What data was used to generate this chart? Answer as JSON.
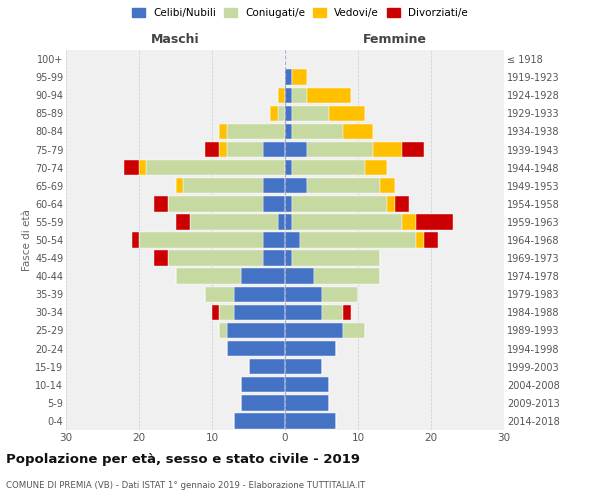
{
  "age_groups": [
    "0-4",
    "5-9",
    "10-14",
    "15-19",
    "20-24",
    "25-29",
    "30-34",
    "35-39",
    "40-44",
    "45-49",
    "50-54",
    "55-59",
    "60-64",
    "65-69",
    "70-74",
    "75-79",
    "80-84",
    "85-89",
    "90-94",
    "95-99",
    "100+"
  ],
  "birth_years": [
    "2014-2018",
    "2009-2013",
    "2004-2008",
    "1999-2003",
    "1994-1998",
    "1989-1993",
    "1984-1988",
    "1979-1983",
    "1974-1978",
    "1969-1973",
    "1964-1968",
    "1959-1963",
    "1954-1958",
    "1949-1953",
    "1944-1948",
    "1939-1943",
    "1934-1938",
    "1929-1933",
    "1924-1928",
    "1919-1923",
    "≤ 1918"
  ],
  "male": {
    "celibi": [
      7,
      6,
      6,
      5,
      8,
      8,
      7,
      7,
      6,
      3,
      3,
      1,
      3,
      3,
      0,
      3,
      0,
      0,
      0,
      0,
      0
    ],
    "coniugati": [
      0,
      0,
      0,
      0,
      0,
      1,
      2,
      4,
      9,
      13,
      17,
      12,
      13,
      11,
      19,
      5,
      8,
      1,
      0,
      0,
      0
    ],
    "vedovi": [
      0,
      0,
      0,
      0,
      0,
      0,
      0,
      0,
      0,
      0,
      0,
      0,
      0,
      1,
      1,
      1,
      1,
      1,
      1,
      0,
      0
    ],
    "divorziati": [
      0,
      0,
      0,
      0,
      0,
      0,
      1,
      0,
      0,
      2,
      1,
      2,
      2,
      0,
      2,
      2,
      0,
      0,
      0,
      0,
      0
    ]
  },
  "female": {
    "nubili": [
      7,
      6,
      6,
      5,
      7,
      8,
      5,
      5,
      4,
      1,
      2,
      1,
      1,
      3,
      1,
      3,
      1,
      1,
      1,
      1,
      0
    ],
    "coniugate": [
      0,
      0,
      0,
      0,
      0,
      3,
      3,
      5,
      9,
      12,
      16,
      15,
      13,
      10,
      10,
      9,
      7,
      5,
      2,
      0,
      0
    ],
    "vedove": [
      0,
      0,
      0,
      0,
      0,
      0,
      0,
      0,
      0,
      0,
      1,
      2,
      1,
      2,
      3,
      4,
      4,
      5,
      6,
      2,
      0
    ],
    "divorziate": [
      0,
      0,
      0,
      0,
      0,
      0,
      1,
      0,
      0,
      0,
      2,
      5,
      2,
      0,
      0,
      3,
      0,
      0,
      0,
      0,
      0
    ]
  },
  "colors": {
    "celibi": "#4472c4",
    "coniugati": "#c5d9a0",
    "vedovi": "#ffc000",
    "divorziati": "#cc0000"
  },
  "xlim": 30,
  "title": "Popolazione per età, sesso e stato civile - 2019",
  "subtitle": "COMUNE DI PREMIA (VB) - Dati ISTAT 1° gennaio 2019 - Elaborazione TUTTITALIA.IT",
  "ylabel_left": "Fasce di età",
  "xlabel_left": "Maschi",
  "xlabel_right": "Femmine",
  "legend_labels": [
    "Celibi/Nubili",
    "Coniugati/e",
    "Vedovi/e",
    "Divorziati/e"
  ],
  "bg_color": "#f0f0f0"
}
